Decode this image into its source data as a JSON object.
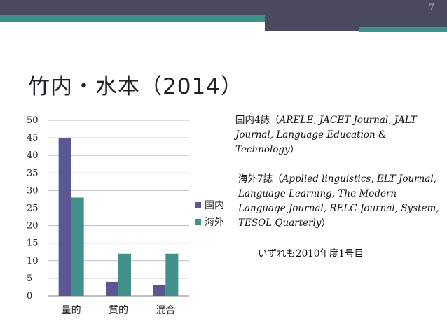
{
  "slide": {
    "page_number": "7",
    "title": "竹内・水本（2014）"
  },
  "notes": {
    "domestic": {
      "prefix": "国内4誌（",
      "journals": "ARELE, JACET Journal, JALT Journal, Language Education & Technology",
      "suffix": "）"
    },
    "overseas": {
      "prefix": "海外7誌（",
      "journals": "Applied linguistics, ELT Journal, Language Learning, The Modern Language Journal, RELC Journal, System, TESOL Quarterly",
      "suffix": "）"
    },
    "period": "いずれも2010年度1号目"
  },
  "colors": {
    "domestic": "#5b5795",
    "overseas": "#40908b",
    "band_dark": "#4a4a5e",
    "band_teal": "#3f8f8a"
  },
  "chart_data": {
    "type": "bar",
    "categories": [
      "量的",
      "質的",
      "混合"
    ],
    "series": [
      {
        "name": "国内",
        "values": [
          45,
          4,
          3
        ]
      },
      {
        "name": "海外",
        "values": [
          28,
          12,
          12
        ]
      }
    ],
    "yticks": [
      "0",
      "5",
      "10",
      "15",
      "20",
      "25",
      "30",
      "35",
      "40",
      "45",
      "50"
    ],
    "ylim": [
      0,
      50
    ],
    "grid": true,
    "legend": "right"
  }
}
